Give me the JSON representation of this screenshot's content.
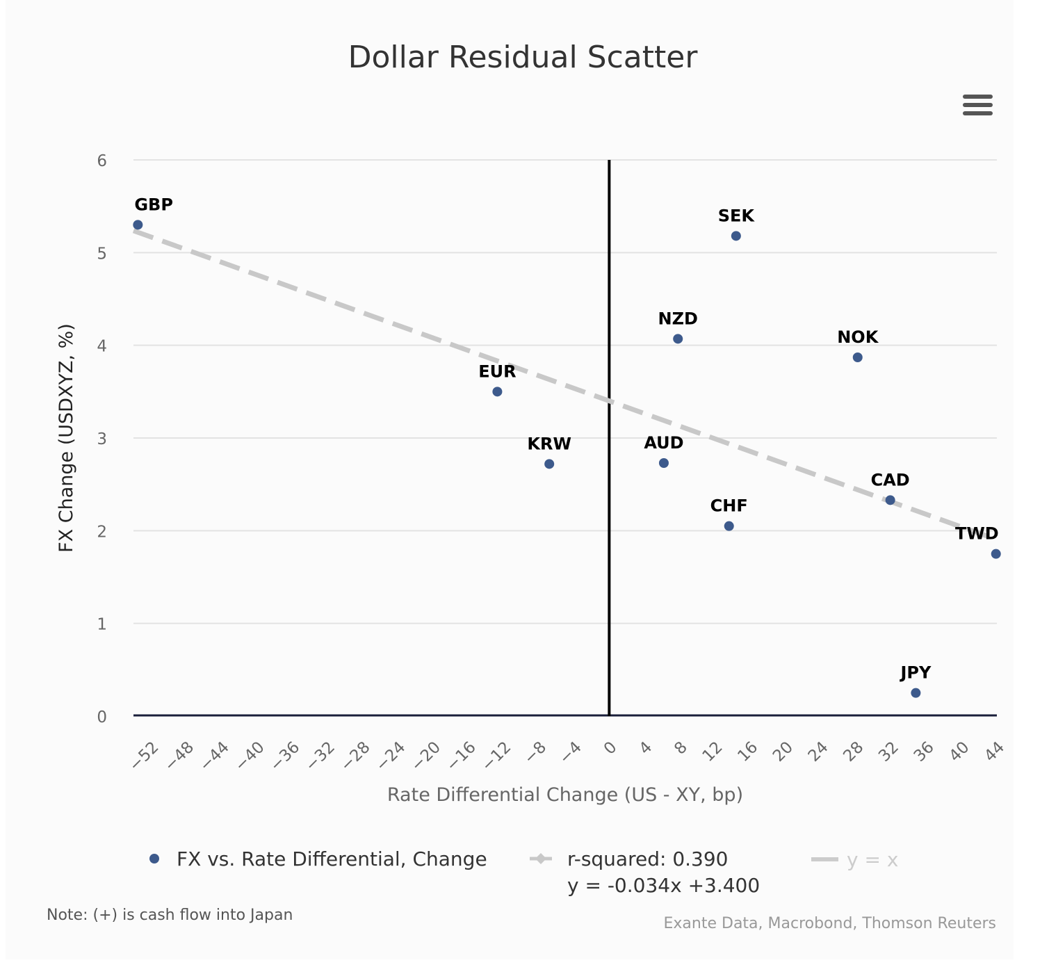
{
  "chart_data": {
    "type": "scatter",
    "title": "Dollar Residual Scatter",
    "xlabel": "Rate Differential Change (US - XY, bp)",
    "ylabel": "FX Change (USDXYZ, %)",
    "xlim": [
      -54,
      44
    ],
    "ylim": [
      0,
      6
    ],
    "x_ticks": [
      "-52",
      "-48",
      "-44",
      "-40",
      "-36",
      "-32",
      "-28",
      "-24",
      "-20",
      "-16",
      "-12",
      "-8",
      "-4",
      "0",
      "4",
      "8",
      "12",
      "16",
      "20",
      "24",
      "28",
      "32",
      "36",
      "40",
      "44"
    ],
    "y_ticks": [
      "0",
      "1",
      "2",
      "3",
      "4",
      "5",
      "6"
    ],
    "grid": "horizontal",
    "series": [
      {
        "name": "FX vs. Rate Differential, Change",
        "color": "#3d5a8c",
        "points": [
          {
            "label": "GBP",
            "x": -53.5,
            "y": 5.3
          },
          {
            "label": "EUR",
            "x": -12.7,
            "y": 3.5
          },
          {
            "label": "KRW",
            "x": -6.8,
            "y": 2.72
          },
          {
            "label": "AUD",
            "x": 6.2,
            "y": 2.73
          },
          {
            "label": "NZD",
            "x": 7.8,
            "y": 4.07
          },
          {
            "label": "SEK",
            "x": 14.4,
            "y": 5.18
          },
          {
            "label": "CHF",
            "x": 13.6,
            "y": 2.05
          },
          {
            "label": "NOK",
            "x": 28.2,
            "y": 3.87
          },
          {
            "label": "CAD",
            "x": 31.9,
            "y": 2.33
          },
          {
            "label": "JPY",
            "x": 34.8,
            "y": 0.25
          },
          {
            "label": "TWD",
            "x": 43.9,
            "y": 1.75
          }
        ]
      }
    ],
    "regression": {
      "name": "r-squared: 0.390",
      "equation": "y = -0.034x +3.400",
      "slope": -0.034,
      "intercept": 3.4,
      "color": "#c8c8c8"
    },
    "reference_line": {
      "name": "y = x",
      "visible": false
    },
    "legend_position": "bottom"
  },
  "note": "Note: (+) is cash flow into Japan",
  "credits": "Exante Data, Macrobond, Thomson Reuters",
  "menu_icon": "hamburger-menu-icon"
}
